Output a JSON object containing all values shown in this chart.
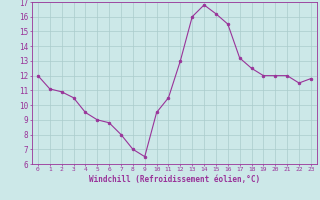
{
  "x": [
    0,
    1,
    2,
    3,
    4,
    5,
    6,
    7,
    8,
    9,
    10,
    11,
    12,
    13,
    14,
    15,
    16,
    17,
    18,
    19,
    20,
    21,
    22,
    23
  ],
  "y": [
    12,
    11.1,
    10.9,
    10.5,
    9.5,
    9.0,
    8.8,
    8.0,
    7.0,
    6.5,
    9.5,
    10.5,
    13.0,
    16.0,
    16.8,
    16.2,
    15.5,
    13.2,
    12.5,
    12.0,
    12.0,
    12.0,
    11.5,
    11.8
  ],
  "xlabel": "Windchill (Refroidissement éolien,°C)",
  "ylim": [
    6,
    17
  ],
  "xlim": [
    -0.5,
    23.5
  ],
  "yticks": [
    6,
    7,
    8,
    9,
    10,
    11,
    12,
    13,
    14,
    15,
    16,
    17
  ],
  "xticks": [
    0,
    1,
    2,
    3,
    4,
    5,
    6,
    7,
    8,
    9,
    10,
    11,
    12,
    13,
    14,
    15,
    16,
    17,
    18,
    19,
    20,
    21,
    22,
    23
  ],
  "line_color": "#993399",
  "marker_color": "#993399",
  "bg_color": "#cce8e8",
  "grid_color": "#aacccc",
  "xlabel_color": "#993399",
  "tick_color": "#993399",
  "font_family": "monospace"
}
